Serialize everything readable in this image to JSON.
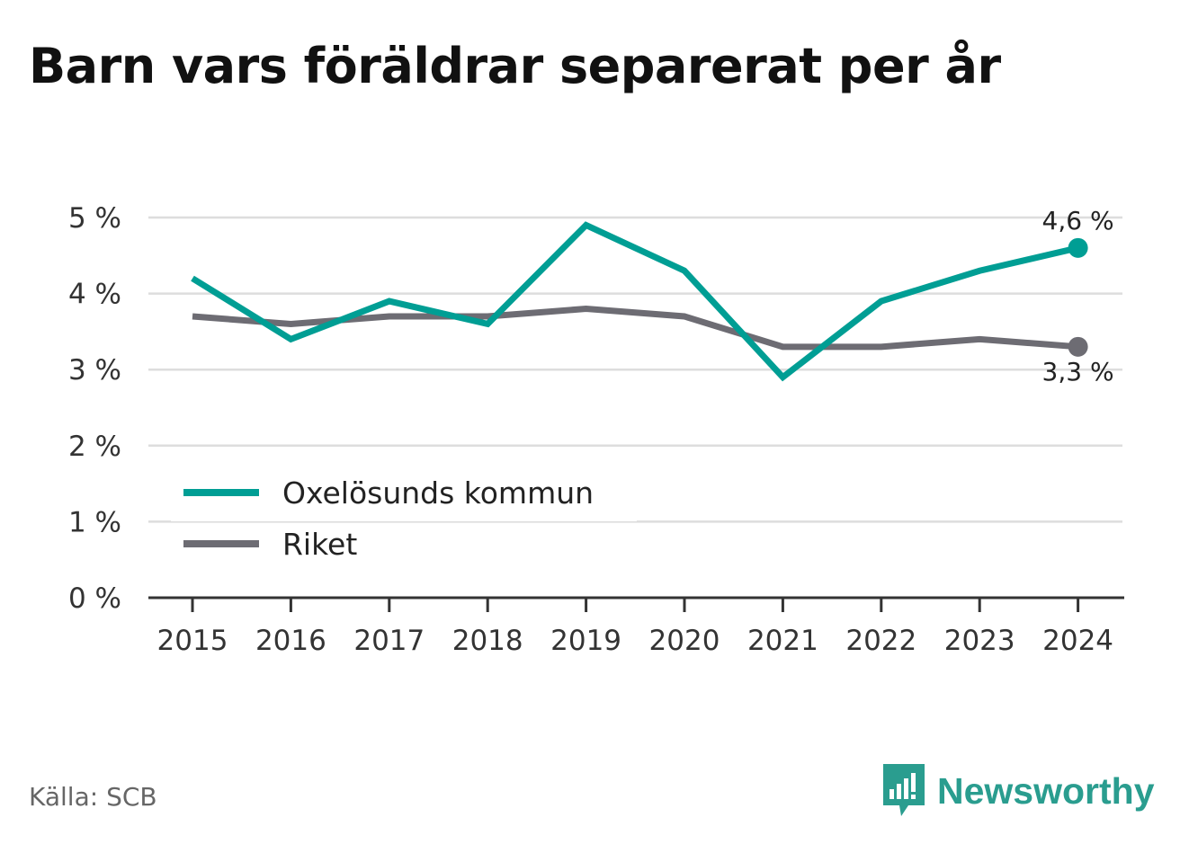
{
  "title": "Barn vars föräldrar separerat per år",
  "source": "Källa: SCB",
  "brand": "Newsworthy",
  "colors": {
    "accent": "#009e94",
    "national": "#6d6c73",
    "grid": "#dddddd",
    "axis": "#333333",
    "brand": "#2a9d8f"
  },
  "chart_data": {
    "type": "line",
    "x": [
      "2015",
      "2016",
      "2017",
      "2018",
      "2019",
      "2020",
      "2021",
      "2022",
      "2023",
      "2024"
    ],
    "yticks": [
      "0 %",
      "1 %",
      "2 %",
      "3 %",
      "4 %",
      "5 %"
    ],
    "ylim": [
      0,
      5
    ],
    "grid": true,
    "legend_position": "lower-left",
    "series": [
      {
        "name": "Oxelösunds kommun",
        "color": "#009e94",
        "values": [
          4.2,
          3.4,
          3.9,
          3.6,
          4.9,
          4.3,
          2.9,
          3.9,
          4.3,
          4.6
        ],
        "end_label": "4,6 %"
      },
      {
        "name": "Riket",
        "color": "#6d6c73",
        "values": [
          3.7,
          3.6,
          3.7,
          3.7,
          3.8,
          3.7,
          3.3,
          3.3,
          3.4,
          3.3
        ],
        "end_label": "3,3 %"
      }
    ]
  }
}
